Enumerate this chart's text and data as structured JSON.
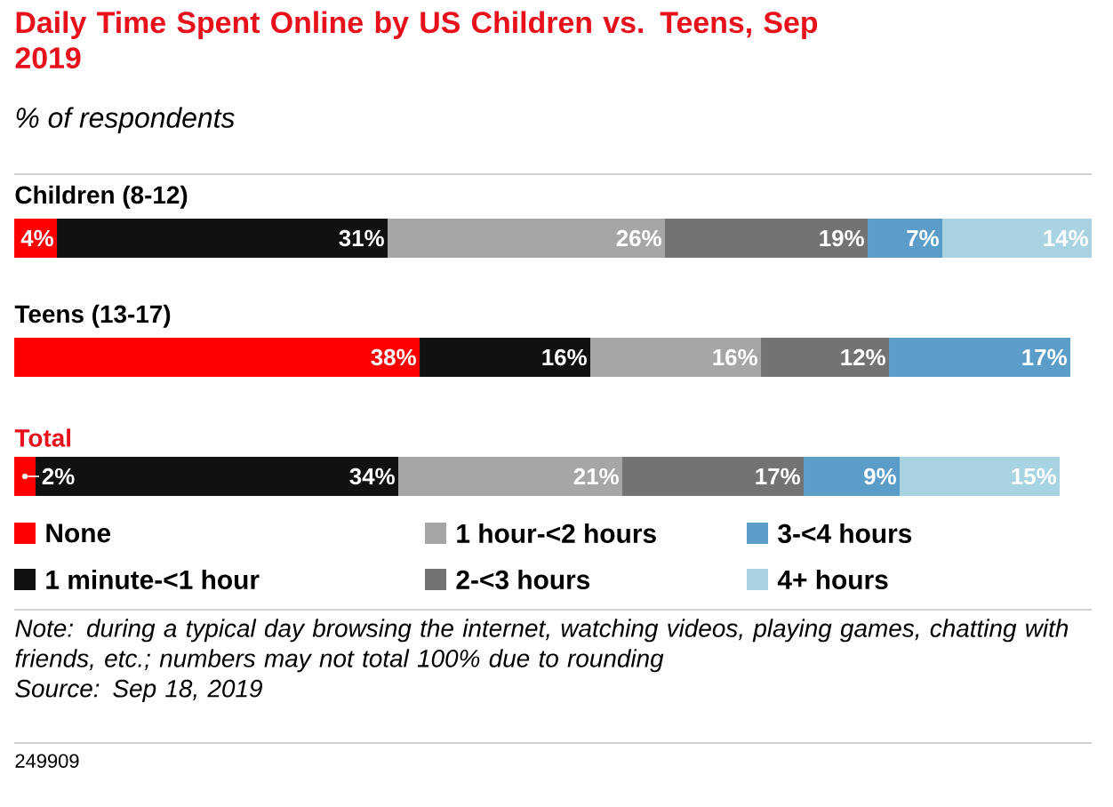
{
  "chart_data": {
    "type": "bar",
    "orientation": "horizontal",
    "stacked": true,
    "title": "Daily Time Spent Online by US Children vs. Teens, Sep 2019",
    "subtitle": "% of respondents",
    "categories": [
      "Children (8-12)",
      "Teens (13-17)",
      "Total"
    ],
    "series": [
      {
        "name": "None",
        "color": "#ff0000",
        "values": [
          4,
          38,
          2
        ],
        "value_labels": [
          "4%",
          "38%",
          "2%"
        ]
      },
      {
        "name": "1 minute-<1 hour",
        "color": "#111111",
        "values": [
          31,
          16,
          34
        ],
        "value_labels": [
          "31%",
          "16%",
          "34%"
        ]
      },
      {
        "name": "1 hour-<2 hours",
        "color": "#a6a6a6",
        "values": [
          26,
          16,
          21
        ],
        "value_labels": [
          "26%",
          "16%",
          "21%"
        ]
      },
      {
        "name": "2-<3 hours",
        "color": "#737373",
        "values": [
          19,
          12,
          17
        ],
        "value_labels": [
          "19%",
          "12%",
          "17%"
        ]
      },
      {
        "name": "3-<4 hours",
        "color": "#5a9dc8",
        "values": [
          7,
          17,
          9
        ],
        "value_labels": [
          "7%",
          "17%",
          "9%"
        ]
      },
      {
        "name": "4+ hours",
        "color": "#a8d3e3",
        "values": [
          14,
          null,
          15
        ],
        "value_labels": [
          "14%",
          null,
          "15%"
        ]
      }
    ],
    "legend": "bottom",
    "tick_labels": false,
    "annotations": [
      "Note: during a typical day browsing the internet, watching videos, playing games, chatting with friends, etc.; numbers may not total 100% due to rounding",
      "Source: Sep 18, 2019",
      "249909"
    ]
  }
}
